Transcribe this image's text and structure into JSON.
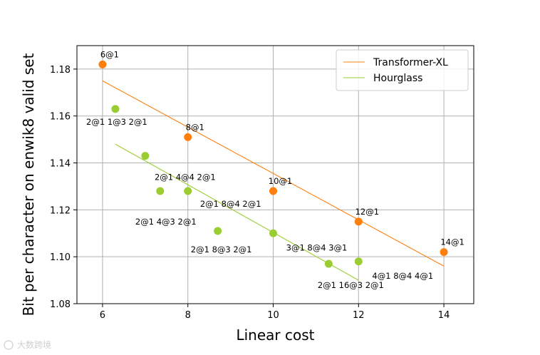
{
  "chart_data": {
    "type": "scatter",
    "title": "",
    "xlabel": "Linear cost",
    "ylabel": "Bit per character on enwik8 valid set",
    "xlim": [
      5.4,
      14.7
    ],
    "ylim": [
      1.08,
      1.19
    ],
    "xticks": [
      6,
      8,
      10,
      12,
      14
    ],
    "yticks": [
      1.08,
      1.1,
      1.12,
      1.14,
      1.16,
      1.18
    ],
    "xtick_labels": [
      "6",
      "8",
      "10",
      "12",
      "14"
    ],
    "ytick_labels": [
      "1.08",
      "1.10",
      "1.12",
      "1.14",
      "1.16",
      "1.18"
    ],
    "grid": true,
    "legend_position": "top-right",
    "series": [
      {
        "name": "Transformer-XL",
        "color": "#ff7f0e",
        "points": [
          {
            "x": 6,
            "y": 1.182,
            "label": "6@1"
          },
          {
            "x": 8,
            "y": 1.151,
            "label": "8@1"
          },
          {
            "x": 10,
            "y": 1.128,
            "label": "10@1"
          },
          {
            "x": 12,
            "y": 1.115,
            "label": "12@1"
          },
          {
            "x": 14,
            "y": 1.102,
            "label": "14@1"
          }
        ],
        "trend": {
          "x": [
            6,
            14
          ],
          "y": [
            1.175,
            1.096
          ]
        }
      },
      {
        "name": "Hourglass",
        "color": "#9acd32",
        "points": [
          {
            "x": 6.3,
            "y": 1.163,
            "label": "2@1 1@3 2@1"
          },
          {
            "x": 7.0,
            "y": 1.143,
            "label": "2@1 4@4 2@1"
          },
          {
            "x": 7.35,
            "y": 1.128,
            "label": "2@1 4@3 2@1"
          },
          {
            "x": 8.0,
            "y": 1.128,
            "label": "2@1 8@4 2@1"
          },
          {
            "x": 8.7,
            "y": 1.111,
            "label": "2@1 8@3 2@1"
          },
          {
            "x": 10.0,
            "y": 1.11,
            "label": "3@1 8@4 3@1"
          },
          {
            "x": 11.3,
            "y": 1.097,
            "label": "2@1 16@3 2@1"
          },
          {
            "x": 12.0,
            "y": 1.098,
            "label": "4@1 8@4 4@1"
          }
        ],
        "trend": {
          "x": [
            6.3,
            12.0
          ],
          "y": [
            1.148,
            1.09
          ]
        }
      }
    ]
  },
  "watermark": "大数跨境"
}
